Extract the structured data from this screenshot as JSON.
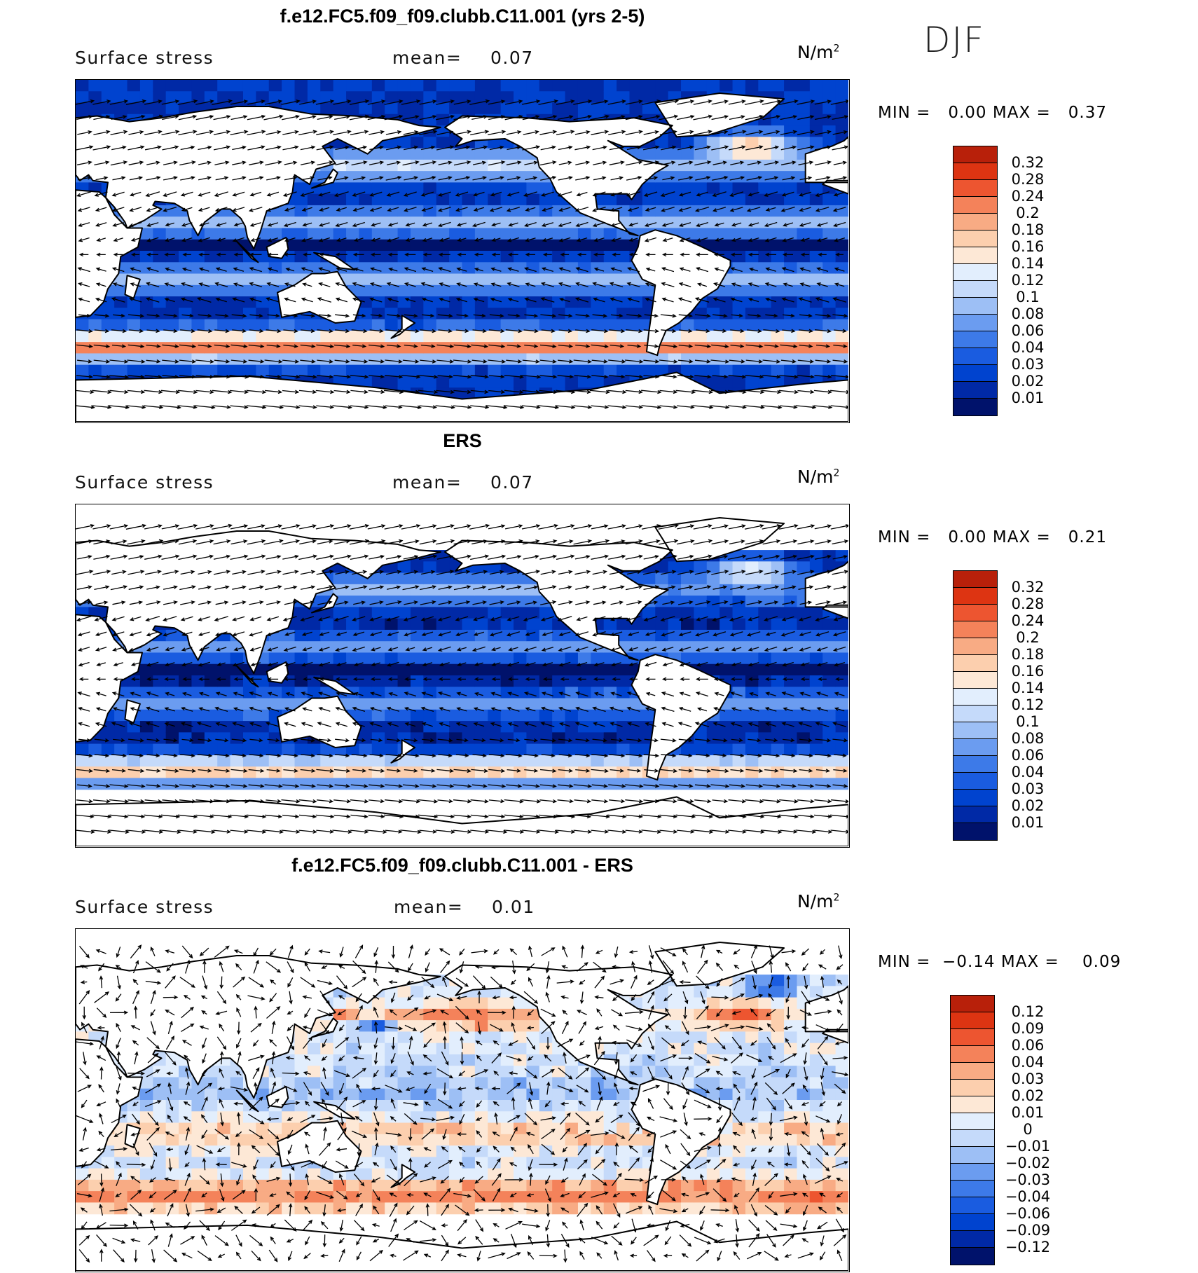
{
  "season": "DJF",
  "colors": {
    "seq": [
      "#00126b",
      "#0029a6",
      "#0043cf",
      "#1a5ce0",
      "#3d7ae8",
      "#6b9cf0",
      "#9dbff5",
      "#c5dafa",
      "#e2eefd",
      "#fde8d6",
      "#fccfae",
      "#f8ab84",
      "#f4825a",
      "#ed5530",
      "#dd3412",
      "#b8200a",
      "#8a0a05"
    ],
    "div": [
      "#00126b",
      "#0029a6",
      "#0043cf",
      "#1a5ce0",
      "#3d7ae8",
      "#6b9cf0",
      "#9dbff5",
      "#c5dafa",
      "#e2eefd",
      "#fde8d6",
      "#fccfae",
      "#f8ab84",
      "#f4825a",
      "#ed5530",
      "#dd3412",
      "#b8200a",
      "#8a0a05"
    ]
  },
  "panels": [
    {
      "title": "f.e12.FC5.f09_f09.clubb.C11.001 (yrs 2-5)",
      "variable": "Surface stress",
      "mean_label": "mean=",
      "mean_value": "0.07",
      "unit": "N/m",
      "unit_sup": "2",
      "min_label": "MIN =",
      "min_value": "0.00",
      "max_label": "MAX =",
      "max_value": "0.37",
      "scale": "seq",
      "levels": [
        "0.32",
        "0.28",
        "0.24",
        "0.2",
        "0.18",
        "0.16",
        "0.14",
        "0.12",
        "0.1",
        "0.08",
        "0.06",
        "0.04",
        "0.03",
        "0.02",
        "0.01"
      ],
      "mode": "model"
    },
    {
      "title": "ERS",
      "variable": "Surface stress",
      "mean_label": "mean=",
      "mean_value": "0.07",
      "unit": "N/m",
      "unit_sup": "2",
      "min_label": "MIN =",
      "min_value": "0.00",
      "max_label": "MAX =",
      "max_value": "0.21",
      "scale": "seq",
      "levels": [
        "0.32",
        "0.28",
        "0.24",
        "0.2",
        "0.18",
        "0.16",
        "0.14",
        "0.12",
        "0.1",
        "0.08",
        "0.06",
        "0.04",
        "0.03",
        "0.02",
        "0.01"
      ],
      "mode": "obs"
    },
    {
      "title": "f.e12.FC5.f09_f09.clubb.C11.001 - ERS",
      "variable": "Surface stress",
      "mean_label": "mean=",
      "mean_value": "0.01",
      "unit": "N/m",
      "unit_sup": "2",
      "min_label": "MIN =",
      "min_value": "−0.14",
      "max_label": "MAX =",
      "max_value": "0.09",
      "scale": "div",
      "levels": [
        "0.12",
        "0.09",
        "0.06",
        "0.04",
        "0.03",
        "0.02",
        "0.01",
        "0",
        "−0.01",
        "−0.02",
        "−0.03",
        "−0.04",
        "−0.06",
        "−0.09",
        "−0.12"
      ],
      "mode": "diff"
    }
  ]
}
